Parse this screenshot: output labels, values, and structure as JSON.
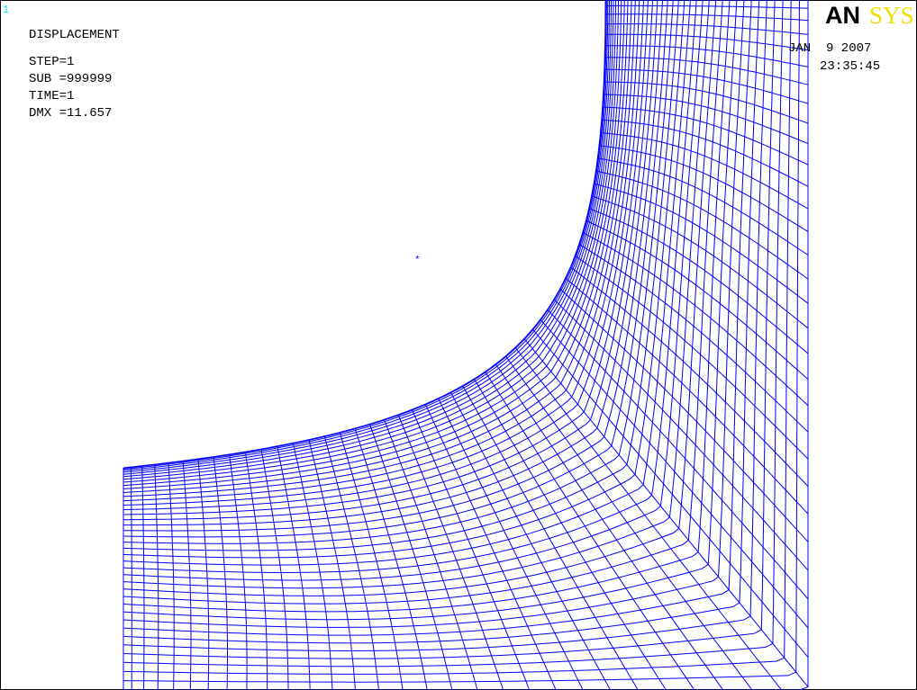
{
  "window_number": "1",
  "header": {
    "lines": [
      "DISPLACEMENT",
      "STEP=1",
      "SUB =999999",
      "TIME=1",
      "DMX =11.657"
    ]
  },
  "logo": {
    "part1": "AN",
    "part2": "SYS"
  },
  "date": "JAN  9 2007",
  "time": "23:35:45",
  "marker": "*"
}
